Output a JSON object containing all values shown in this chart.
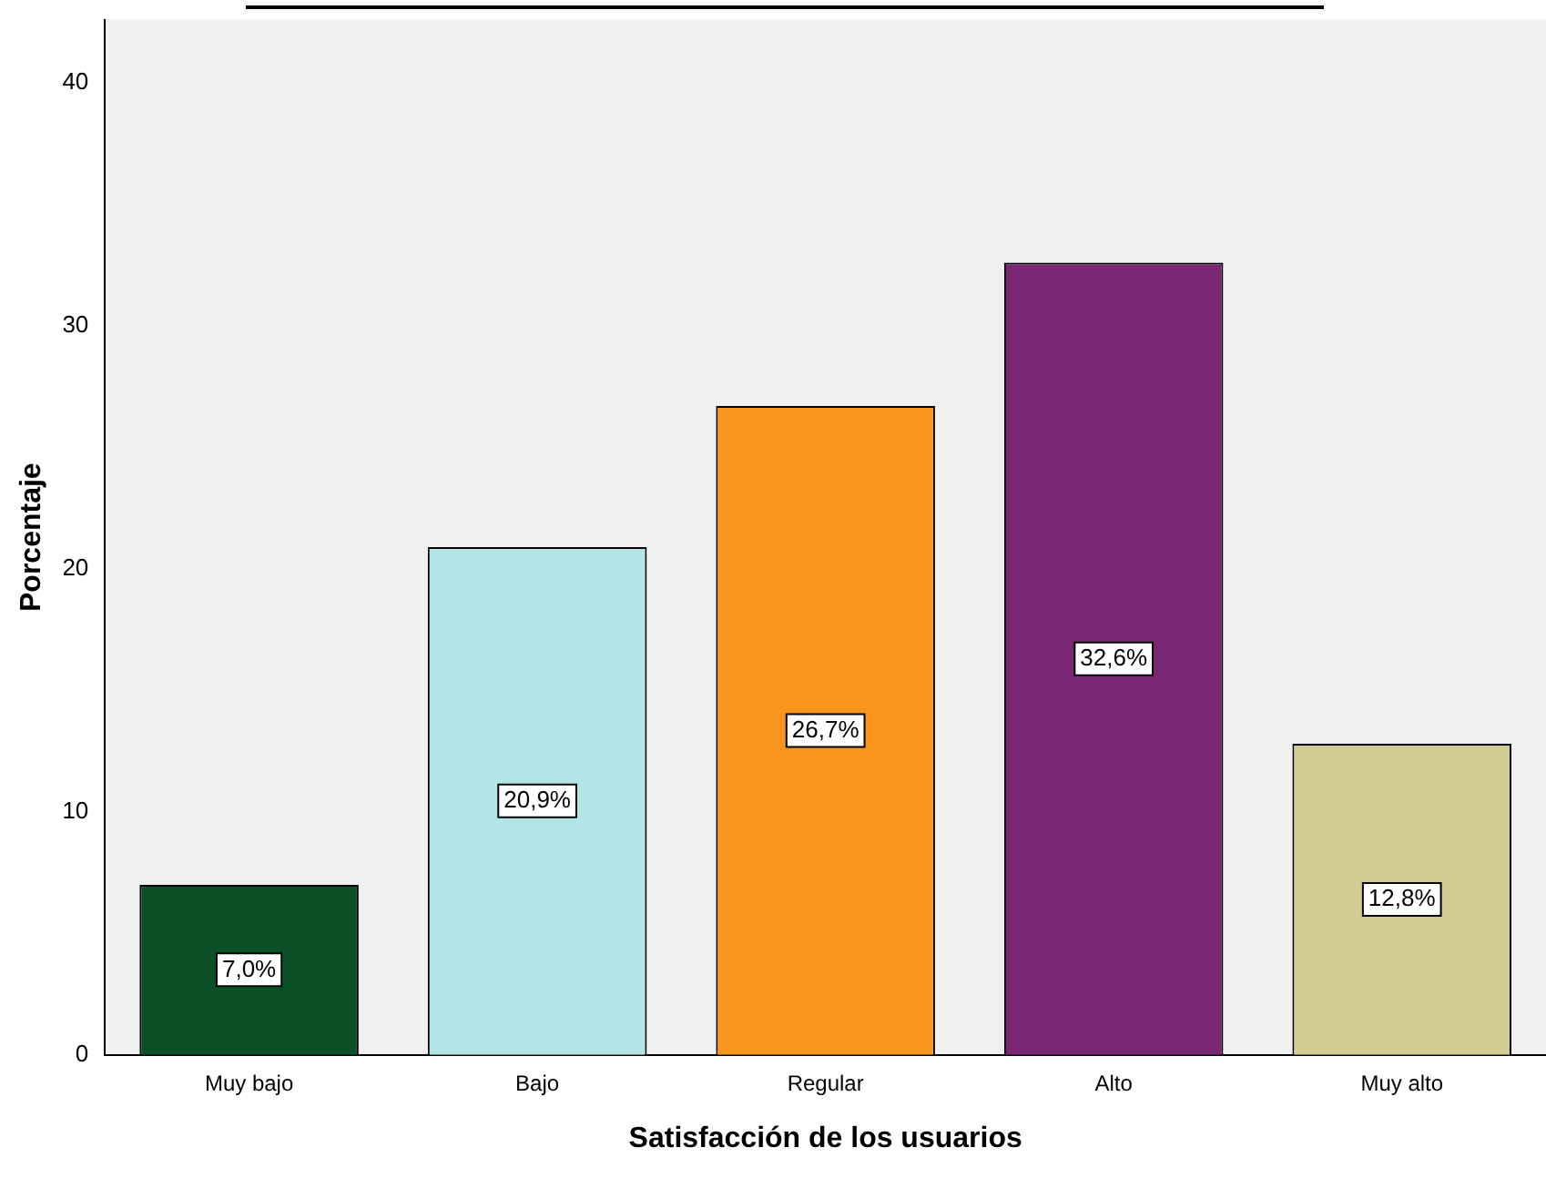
{
  "chart_data": {
    "type": "bar",
    "xlabel": "Satisfacción de los usuarios",
    "ylabel": "Porcentaje",
    "categories": [
      "Muy bajo",
      "Bajo",
      "Regular",
      "Alto",
      "Muy alto"
    ],
    "values": [
      7.0,
      20.9,
      26.7,
      32.6,
      12.8
    ],
    "colors": [
      "#0b5027",
      "#b3e5e6",
      "#f7951d",
      "#7a2876",
      "#d3cd95"
    ],
    "value_labels": [
      "7,0%",
      "20,9%",
      "26,7%",
      "32,6%",
      "12,8%"
    ],
    "ylim": [
      0,
      42.6
    ],
    "yticks": [
      0,
      10,
      20,
      30,
      40
    ],
    "grid": false,
    "legend": false
  }
}
